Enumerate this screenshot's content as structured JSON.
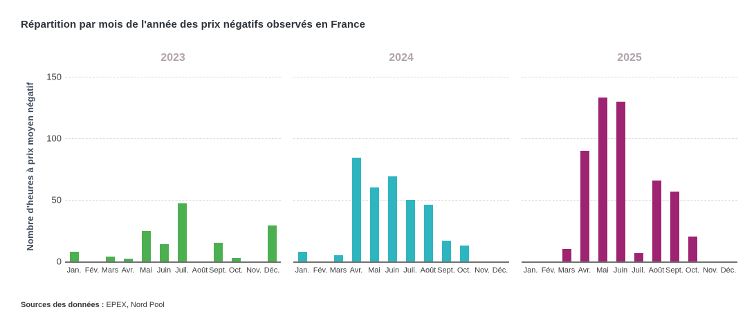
{
  "title": "Répartition par mois de l'année des prix négatifs observés en France",
  "source": {
    "label": "Sources des données :",
    "value": " EPEX, Nord Pool"
  },
  "colors": {
    "title_text": "#2e3338",
    "y_axis_label_text": "#3d4c5c",
    "year_label_text": "#b2a3ac",
    "tick_text": "#3f3f3f",
    "gridline": "#d8d8d8",
    "baseline": "#707070",
    "bar_2023": "#4caf50",
    "bar_2024": "#2fb5c0",
    "bar_2025": "#9e2472"
  },
  "chart_data": {
    "type": "bar",
    "title": "Répartition par mois de l'année des prix négatifs observés en France",
    "ylabel": "Nombre d'heures à prix moyen négatif",
    "xlabel": "",
    "ylim": [
      0,
      150
    ],
    "yticks": [
      0,
      50,
      100,
      150
    ],
    "grid": "horizontal-dashed",
    "legend": "none, one facet panel per year with colored title",
    "categories": [
      "Jan.",
      "Fév.",
      "Mars",
      "Avr.",
      "Mai",
      "Juin",
      "Juil.",
      "Août",
      "Sept.",
      "Oct.",
      "Nov.",
      "Déc."
    ],
    "panels": [
      {
        "title": "2023",
        "color": "#4caf50",
        "values": [
          8,
          0,
          4,
          2,
          25,
          14,
          47,
          0,
          15,
          3,
          0,
          29
        ]
      },
      {
        "title": "2024",
        "color": "#2fb5c0",
        "values": [
          8,
          0,
          5,
          84,
          60,
          69,
          50,
          46,
          17,
          13,
          0,
          0
        ]
      },
      {
        "title": "2025",
        "color": "#9e2472",
        "values": [
          0,
          0,
          10,
          90,
          133,
          130,
          7,
          66,
          57,
          20,
          0,
          0
        ]
      }
    ]
  }
}
